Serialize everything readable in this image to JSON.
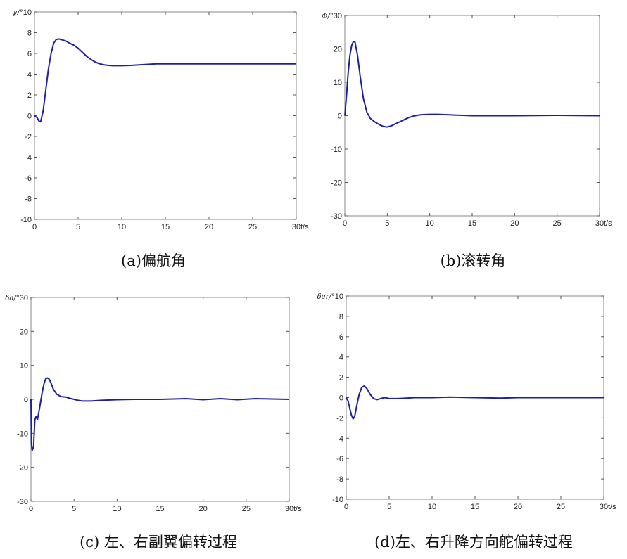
{
  "chart_data": [
    {
      "type": "line",
      "caption": "(a)偏航角",
      "ylabel": "ψ/°",
      "xlabel": "t/s",
      "xlim": [
        0,
        30
      ],
      "ylim": [
        -10,
        10
      ],
      "xticks": [
        0,
        5,
        10,
        15,
        20,
        25,
        30
      ],
      "yticks": [
        -10,
        -8,
        -6,
        -4,
        -2,
        0,
        2,
        4,
        6,
        8,
        10
      ],
      "series": [
        {
          "color": "#1f1fa6",
          "x": [
            0,
            0.3,
            0.5,
            0.7,
            1.0,
            1.3,
            1.6,
            1.9,
            2.2,
            2.5,
            2.8,
            3.2,
            3.6,
            4.0,
            4.5,
            5.0,
            5.5,
            6.0,
            6.5,
            7.0,
            7.5,
            8.0,
            8.5,
            9.0,
            10.0,
            11.0,
            12.0,
            13.0,
            14.0,
            16.0,
            20.0,
            25.0,
            30.0
          ],
          "y": [
            0,
            -0.2,
            -0.5,
            -0.6,
            0.5,
            2.5,
            4.5,
            6.0,
            7.0,
            7.35,
            7.4,
            7.3,
            7.2,
            7.0,
            6.8,
            6.5,
            6.1,
            5.7,
            5.4,
            5.15,
            5.0,
            4.9,
            4.85,
            4.82,
            4.82,
            4.85,
            4.9,
            4.95,
            5.0,
            5.0,
            5.0,
            5.0,
            5.0
          ]
        }
      ]
    },
    {
      "type": "line",
      "caption": "(b)滚转角",
      "ylabel": "Φ/°",
      "xlabel": "t/s",
      "xlim": [
        0,
        30
      ],
      "ylim": [
        -30,
        30
      ],
      "xticks": [
        0,
        5,
        10,
        15,
        20,
        25,
        30
      ],
      "yticks": [
        -30,
        -20,
        -10,
        0,
        10,
        20,
        30
      ],
      "series": [
        {
          "color": "#1f1fa6",
          "x": [
            0,
            0.2,
            0.4,
            0.6,
            0.8,
            1.0,
            1.2,
            1.5,
            1.8,
            2.2,
            2.6,
            3.0,
            3.5,
            4.0,
            4.5,
            5.0,
            5.5,
            6.0,
            6.5,
            7.0,
            7.5,
            8.0,
            8.5,
            9.0,
            10.0,
            11.0,
            12.0,
            13.0,
            15.0,
            20.0,
            25.0,
            30.0
          ],
          "y": [
            0,
            6,
            13,
            18,
            21,
            22.2,
            22,
            18,
            12,
            5,
            1,
            -0.8,
            -1.8,
            -2.6,
            -3.2,
            -3.4,
            -3.0,
            -2.4,
            -1.8,
            -1.2,
            -0.6,
            -0.2,
            0.1,
            0.3,
            0.4,
            0.4,
            0.3,
            0.2,
            0,
            0,
            0.1,
            0
          ]
        }
      ]
    },
    {
      "type": "line",
      "caption": "(c)  左、右副翼偏转过程",
      "ylabel": "δa/°",
      "xlabel": "t/s",
      "xlim": [
        0,
        30
      ],
      "ylim": [
        -30,
        30
      ],
      "xticks": [
        0,
        5,
        10,
        15,
        20,
        25,
        30
      ],
      "yticks": [
        -30,
        -20,
        -10,
        0,
        10,
        20,
        30
      ],
      "series": [
        {
          "color": "#1f1fa6",
          "x": [
            0,
            0.05,
            0.15,
            0.3,
            0.45,
            0.6,
            0.75,
            0.9,
            1.1,
            1.3,
            1.5,
            1.7,
            1.9,
            2.1,
            2.3,
            2.6,
            3.0,
            3.5,
            4.0,
            4.5,
            5.0,
            5.5,
            6.0,
            6.5,
            7.0,
            8.0,
            9.0,
            10.0,
            12.0,
            15.0,
            18.0,
            20.0,
            22.0,
            24.0,
            26.0,
            28.0,
            30.0
          ],
          "y": [
            0,
            -13,
            -15,
            -14,
            -6,
            -5,
            -6,
            -4,
            -1,
            2,
            4.5,
            6,
            6.3,
            6,
            5,
            3,
            1.5,
            0.8,
            0.7,
            0.3,
            0,
            -0.3,
            -0.5,
            -0.5,
            -0.5,
            -0.3,
            -0.2,
            -0.1,
            0,
            0,
            0.2,
            -0.1,
            0.2,
            -0.1,
            0.2,
            0.1,
            0
          ]
        }
      ]
    },
    {
      "type": "line",
      "caption": "(d)左、右升降方向舵偏转过程",
      "ylabel": "δer/°",
      "xlabel": "t/s",
      "xlim": [
        0,
        30
      ],
      "ylim": [
        -10,
        10
      ],
      "xticks": [
        0,
        5,
        10,
        15,
        20,
        25,
        30
      ],
      "yticks": [
        -10,
        -8,
        -6,
        -4,
        -2,
        0,
        2,
        4,
        6,
        8,
        10
      ],
      "series": [
        {
          "color": "#1f1fa6",
          "x": [
            0,
            0.2,
            0.4,
            0.6,
            0.8,
            1.0,
            1.2,
            1.5,
            1.8,
            2.1,
            2.4,
            2.8,
            3.2,
            3.6,
            4.0,
            4.5,
            5.0,
            6.0,
            7.0,
            8.0,
            10.0,
            12.0,
            15.0,
            18.0,
            20.0,
            22.0,
            25.0,
            30.0
          ],
          "y": [
            0,
            -0.3,
            -1.0,
            -1.7,
            -2.1,
            -1.8,
            -0.9,
            0.3,
            1.0,
            1.15,
            0.9,
            0.3,
            -0.1,
            -0.2,
            -0.1,
            0,
            -0.1,
            -0.1,
            -0.05,
            0,
            0,
            0.05,
            0,
            -0.05,
            0,
            0,
            0,
            0
          ]
        }
      ]
    }
  ]
}
